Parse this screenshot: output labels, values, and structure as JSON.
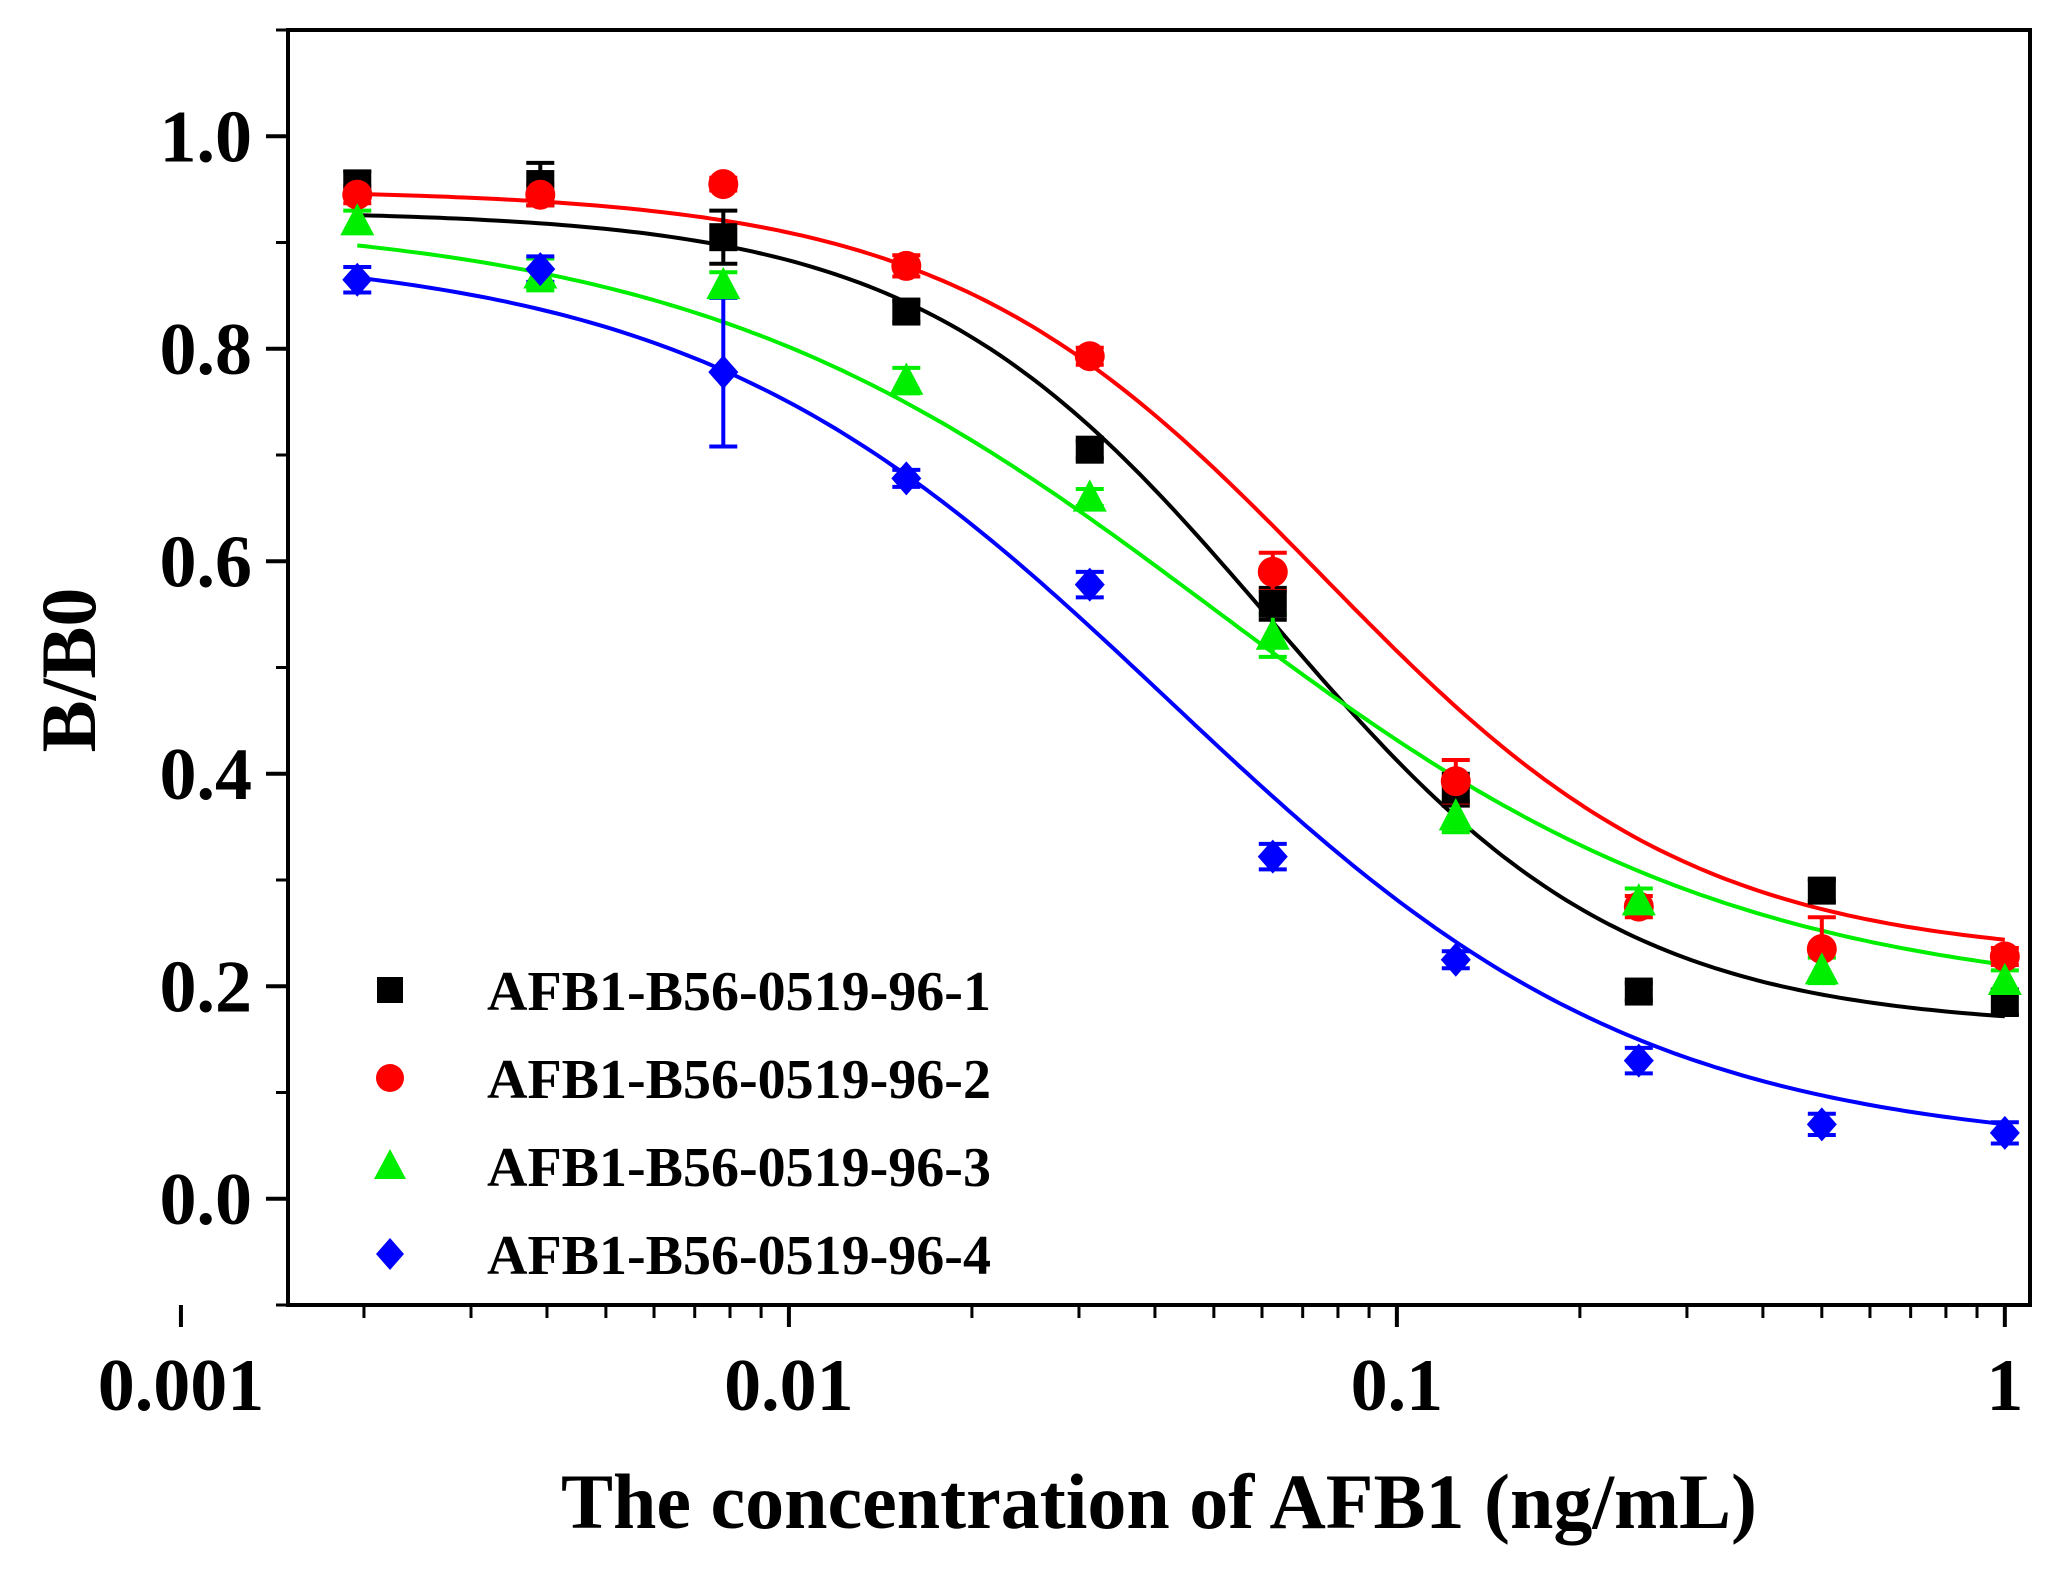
{
  "chart_data": {
    "type": "scatter",
    "title": "",
    "xlabel": "The concentration of AFB1 (ng/mL)",
    "ylabel": "B/B0",
    "xscale": "log",
    "xlim": [
      0.0015,
      1.1
    ],
    "ylim": [
      -0.1,
      1.1
    ],
    "x_ticks": [
      0.001,
      0.01,
      0.1,
      1
    ],
    "x_tick_labels": [
      "0.001",
      "0.01",
      "0.1",
      "1"
    ],
    "y_ticks": [
      0.0,
      0.2,
      0.4,
      0.6,
      0.8,
      1.0
    ],
    "y_tick_labels": [
      "0.0",
      "0.2",
      "0.4",
      "0.6",
      "0.8",
      "1.0"
    ],
    "x": [
      0.00195,
      0.0039,
      0.0078,
      0.0156,
      0.03125,
      0.0625,
      0.125,
      0.25,
      0.5,
      1.0
    ],
    "legend_position": "bottom-left",
    "series": [
      {
        "name": "AFB1-B56-0519-96-1",
        "color": "#000000",
        "marker": "square",
        "values": [
          0.955,
          0.955,
          0.905,
          0.835,
          0.705,
          0.56,
          0.385,
          0.195,
          0.29,
          0.185
        ],
        "errors": [
          0.012,
          0.02,
          0.025,
          0.01,
          0.008,
          0.015,
          0.015,
          0.008,
          0.01,
          0.012
        ],
        "fit": {
          "top": 0.93,
          "bottom": 0.16,
          "ic50": 0.062,
          "hill": 1.5
        }
      },
      {
        "name": "AFB1-B56-0519-96-2",
        "color": "#ff0000",
        "marker": "circle",
        "values": [
          0.945,
          0.945,
          0.955,
          0.878,
          0.793,
          0.59,
          0.393,
          0.275,
          0.235,
          0.228
        ],
        "errors": [
          0.008,
          0.01,
          0.006,
          0.01,
          0.008,
          0.018,
          0.02,
          0.01,
          0.03,
          0.008
        ],
        "fit": {
          "top": 0.95,
          "bottom": 0.225,
          "ic50": 0.075,
          "hill": 1.4
        }
      },
      {
        "name": "AFB1-B56-0519-96-3",
        "color": "#00ee00",
        "marker": "triangle",
        "values": [
          0.92,
          0.87,
          0.86,
          0.77,
          0.66,
          0.53,
          0.36,
          0.28,
          0.215,
          0.205
        ],
        "errors": [
          0.01,
          0.015,
          0.012,
          0.012,
          0.008,
          0.02,
          0.015,
          0.012,
          0.012,
          0.01
        ],
        "fit": {
          "top": 0.925,
          "bottom": 0.185,
          "ic50": 0.05,
          "hill": 1.0
        }
      },
      {
        "name": "AFB1-B56-0519-96-4",
        "color": "#0000ff",
        "marker": "diamond",
        "values": [
          0.865,
          0.875,
          0.778,
          0.678,
          0.578,
          0.322,
          0.225,
          0.13,
          0.07,
          0.062
        ],
        "errors": [
          0.012,
          0.012,
          0.07,
          0.008,
          0.012,
          0.012,
          0.008,
          0.012,
          0.01,
          0.01
        ],
        "fit": {
          "top": 0.895,
          "bottom": 0.045,
          "ic50": 0.042,
          "hill": 1.1
        }
      }
    ]
  }
}
